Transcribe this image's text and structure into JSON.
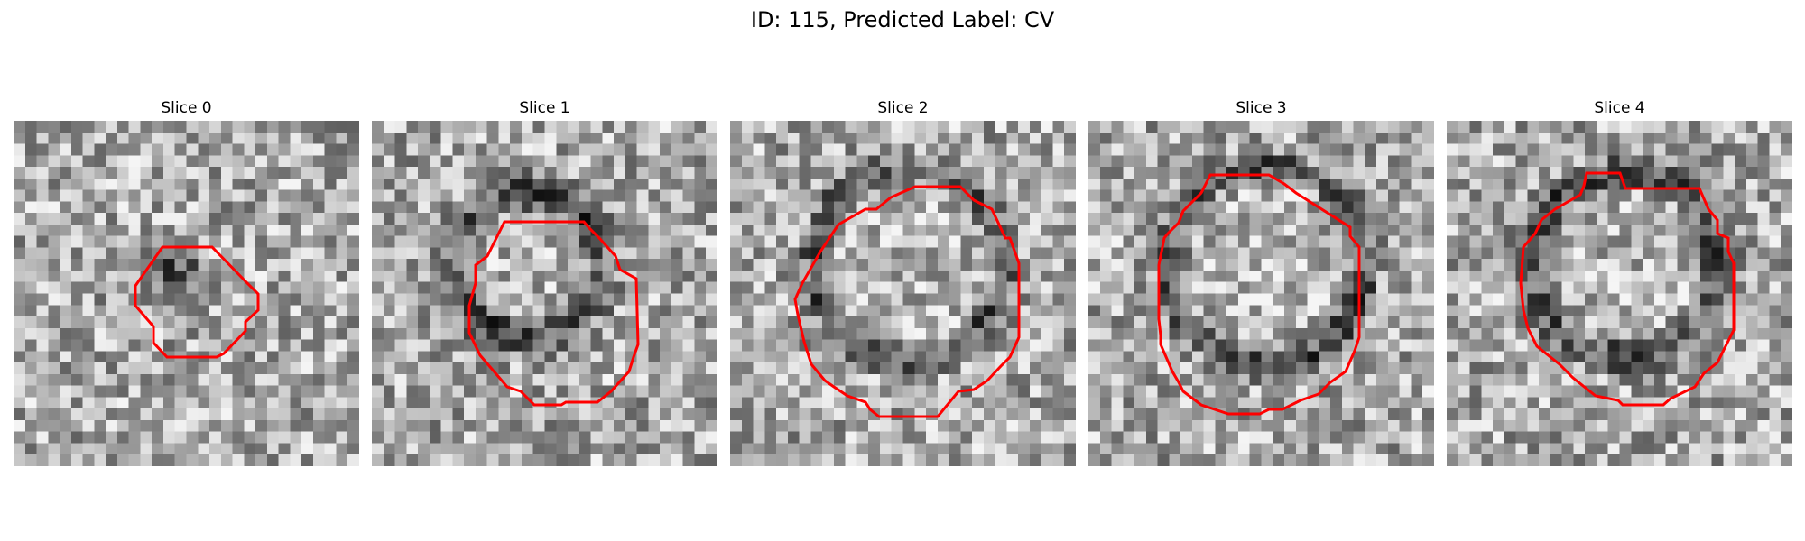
{
  "figure": {
    "title": "ID: 115, Predicted Label: CV"
  },
  "panels": [
    {
      "label": "Slice 0"
    },
    {
      "label": "Slice 1"
    },
    {
      "label": "Slice 2"
    },
    {
      "label": "Slice 3"
    },
    {
      "label": "Slice 4"
    }
  ],
  "colors": {
    "contour": "#ff0000",
    "background": "#ffffff"
  }
}
